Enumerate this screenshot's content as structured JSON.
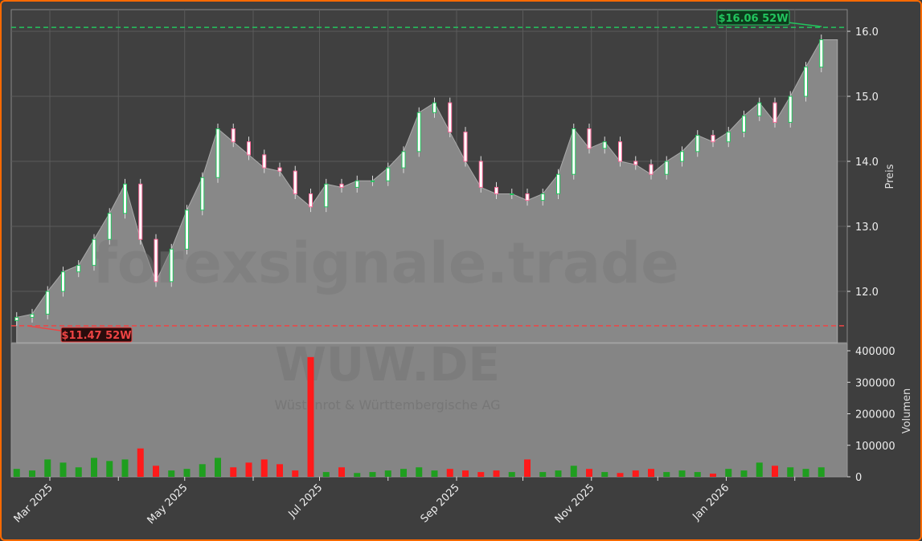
{
  "chart_data": [
    {
      "type": "candlestick-area",
      "ylabel": "Preis",
      "ylim": [
        11.2,
        16.35
      ],
      "yticks": [
        "12.0",
        "13.0",
        "14.0",
        "15.0",
        "16.0"
      ],
      "xticks": [
        "Mar 2025",
        "May 2025",
        "Jul 2025",
        "Sep 2025",
        "Nov 2025",
        "Jan 2026"
      ],
      "grid": true,
      "watermark": "forexsignale.trade",
      "high_52w": {
        "value": 16.06,
        "label": "$16.06 52W",
        "color": "#22c55e"
      },
      "low_52w": {
        "value": 11.47,
        "label": "$11.47 52W",
        "color": "#ef4444"
      },
      "dates": [
        "2025-02-14",
        "2025-02-21",
        "2025-02-28",
        "2025-03-07",
        "2025-03-14",
        "2025-03-21",
        "2025-03-28",
        "2025-04-04",
        "2025-04-11",
        "2025-04-18",
        "2025-04-25",
        "2025-05-02",
        "2025-05-09",
        "2025-05-16",
        "2025-05-23",
        "2025-05-30",
        "2025-06-06",
        "2025-06-13",
        "2025-06-20",
        "2025-06-27",
        "2025-07-04",
        "2025-07-11",
        "2025-07-18",
        "2025-07-25",
        "2025-08-01",
        "2025-08-08",
        "2025-08-15",
        "2025-08-22",
        "2025-08-29",
        "2025-09-05",
        "2025-09-12",
        "2025-09-19",
        "2025-09-26",
        "2025-10-03",
        "2025-10-10",
        "2025-10-17",
        "2025-10-24",
        "2025-10-31",
        "2025-11-07",
        "2025-11-14",
        "2025-11-21",
        "2025-11-28",
        "2025-12-05",
        "2025-12-12",
        "2025-12-19",
        "2025-12-26",
        "2026-01-02",
        "2026-01-09",
        "2026-01-16",
        "2026-01-23",
        "2026-01-30",
        "2026-02-06",
        "2026-02-13"
      ],
      "close": [
        11.6,
        11.65,
        12.0,
        12.3,
        12.4,
        12.8,
        13.2,
        13.65,
        12.8,
        12.15,
        12.65,
        13.25,
        13.75,
        14.5,
        14.3,
        14.1,
        13.9,
        13.85,
        13.5,
        13.3,
        13.65,
        13.6,
        13.7,
        13.7,
        13.9,
        14.15,
        14.75,
        14.9,
        14.45,
        14.0,
        13.6,
        13.5,
        13.5,
        13.4,
        13.5,
        13.8,
        14.5,
        14.2,
        14.3,
        14.0,
        13.95,
        13.8,
        14.0,
        14.15,
        14.4,
        14.3,
        14.45,
        14.7,
        14.9,
        14.6,
        15.0,
        15.45,
        15.87
      ],
      "up_color": "#22c55e",
      "down_color": "#ff6b9a"
    },
    {
      "type": "bar",
      "ylabel": "Volumen",
      "ylim": [
        0,
        400000
      ],
      "yticks": [
        "0",
        "100000",
        "200000",
        "300000",
        "400000"
      ],
      "watermark": "WUW.DE",
      "watermark_sub": "Wüstenrot & Württembergische AG",
      "volume": [
        25000,
        20000,
        55000,
        45000,
        30000,
        60000,
        50000,
        55000,
        90000,
        35000,
        20000,
        25000,
        40000,
        60000,
        30000,
        45000,
        55000,
        40000,
        20000,
        380000,
        15000,
        30000,
        12000,
        15000,
        20000,
        25000,
        30000,
        20000,
        25000,
        20000,
        15000,
        20000,
        15000,
        55000,
        15000,
        20000,
        35000,
        25000,
        15000,
        12000,
        20000,
        25000,
        15000,
        20000,
        15000,
        10000,
        25000,
        20000,
        45000,
        35000,
        30000,
        25000,
        30000
      ],
      "up_color": "#1f9e1f",
      "down_color": "#ff1a1a"
    }
  ]
}
